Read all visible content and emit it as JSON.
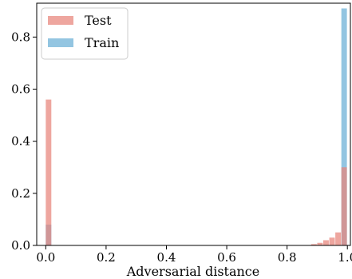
{
  "chart_data": {
    "type": "bar",
    "xlabel": "Adversarial distance",
    "ylabel": "",
    "xlim": [
      -0.03,
      1.01
    ],
    "ylim": [
      0,
      0.93
    ],
    "x_ticks": [
      {
        "value": 0.0,
        "label": "0.0"
      },
      {
        "value": 0.2,
        "label": "0.2"
      },
      {
        "value": 0.4,
        "label": "0.4"
      },
      {
        "value": 0.6,
        "label": "0.6"
      },
      {
        "value": 0.8,
        "label": "0.8"
      },
      {
        "value": 1.0,
        "label": "1.0"
      }
    ],
    "y_ticks": [
      {
        "value": 0.0,
        "label": "0.0"
      },
      {
        "value": 0.2,
        "label": "0.2"
      },
      {
        "value": 0.4,
        "label": "0.4"
      },
      {
        "value": 0.6,
        "label": "0.6"
      },
      {
        "value": 0.8,
        "label": "0.8"
      }
    ],
    "bin_width": 0.02,
    "legend": {
      "placement": "top-left"
    },
    "series": [
      {
        "name": "Test",
        "color": "#e8837a",
        "bins": [
          {
            "x0": 0.0,
            "y": 0.56
          },
          {
            "x0": 0.88,
            "y": 0.005
          },
          {
            "x0": 0.9,
            "y": 0.01
          },
          {
            "x0": 0.92,
            "y": 0.02
          },
          {
            "x0": 0.94,
            "y": 0.03
          },
          {
            "x0": 0.96,
            "y": 0.05
          },
          {
            "x0": 0.98,
            "y": 0.3
          }
        ]
      },
      {
        "name": "Train",
        "color": "#6aaed6",
        "bins": [
          {
            "x0": 0.0,
            "y": 0.08
          },
          {
            "x0": 0.98,
            "y": 0.91
          }
        ]
      }
    ]
  }
}
